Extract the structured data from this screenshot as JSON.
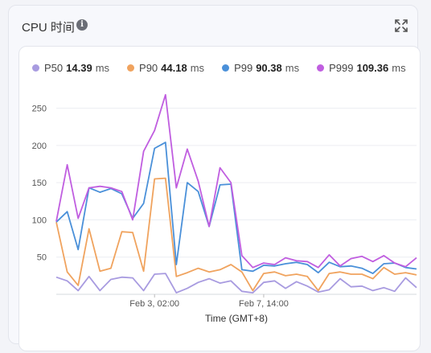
{
  "panel": {
    "title": "CPU 时间",
    "info_icon": "info-icon",
    "expand_icon": "expand-icon"
  },
  "legend": [
    {
      "name": "P50",
      "value": "14.39",
      "unit": "ms",
      "color": "#a89be0"
    },
    {
      "name": "P90",
      "value": "44.18",
      "unit": "ms",
      "color": "#f0a35e"
    },
    {
      "name": "P99",
      "value": "90.38",
      "unit": "ms",
      "color": "#4a90d9"
    },
    {
      "name": "P999",
      "value": "109.36",
      "unit": "ms",
      "color": "#c05ee0"
    }
  ],
  "chart_data": {
    "type": "line",
    "title": "",
    "xlabel": "Time (GMT+8)",
    "ylabel": "",
    "ylim": [
      0,
      270
    ],
    "yticks": [
      50,
      100,
      150,
      200,
      250
    ],
    "xticks": [
      {
        "index": 9,
        "label": "Feb 3, 02:00"
      },
      {
        "index": 19,
        "label": "Feb 7, 14:00"
      }
    ],
    "grid": true,
    "x": [
      0,
      1,
      2,
      3,
      4,
      5,
      6,
      7,
      8,
      9,
      10,
      11,
      12,
      13,
      14,
      15,
      16,
      17,
      18,
      19,
      20,
      21,
      22,
      23,
      24,
      25,
      26,
      27,
      28,
      29,
      30,
      31,
      32,
      33
    ],
    "series": [
      {
        "name": "P50",
        "color": "#a89be0",
        "values": [
          23,
          18,
          5,
          24,
          5,
          20,
          23,
          22,
          5,
          27,
          28,
          2,
          8,
          16,
          21,
          15,
          18,
          4,
          2,
          16,
          18,
          8,
          17,
          11,
          3,
          6,
          21,
          10,
          11,
          5,
          9,
          4,
          22,
          9
        ]
      },
      {
        "name": "P90",
        "color": "#f0a35e",
        "values": [
          97,
          30,
          12,
          88,
          31,
          35,
          84,
          83,
          31,
          155,
          156,
          24,
          29,
          35,
          30,
          33,
          40,
          30,
          5,
          28,
          30,
          25,
          27,
          24,
          5,
          28,
          30,
          27,
          27,
          21,
          36,
          27,
          29,
          26
        ]
      },
      {
        "name": "P99",
        "color": "#4a90d9",
        "values": [
          97,
          111,
          60,
          143,
          137,
          142,
          135,
          102,
          122,
          196,
          204,
          40,
          150,
          138,
          91,
          147,
          148,
          33,
          31,
          39,
          38,
          41,
          43,
          40,
          29,
          43,
          37,
          38,
          35,
          28,
          41,
          42,
          36,
          34
        ]
      },
      {
        "name": "P999",
        "color": "#c05ee0",
        "values": [
          98,
          174,
          102,
          143,
          145,
          143,
          138,
          100,
          192,
          220,
          268,
          143,
          195,
          152,
          91,
          170,
          150,
          52,
          36,
          42,
          40,
          49,
          45,
          44,
          36,
          53,
          38,
          48,
          51,
          44,
          52,
          42,
          37,
          49
        ]
      }
    ]
  }
}
